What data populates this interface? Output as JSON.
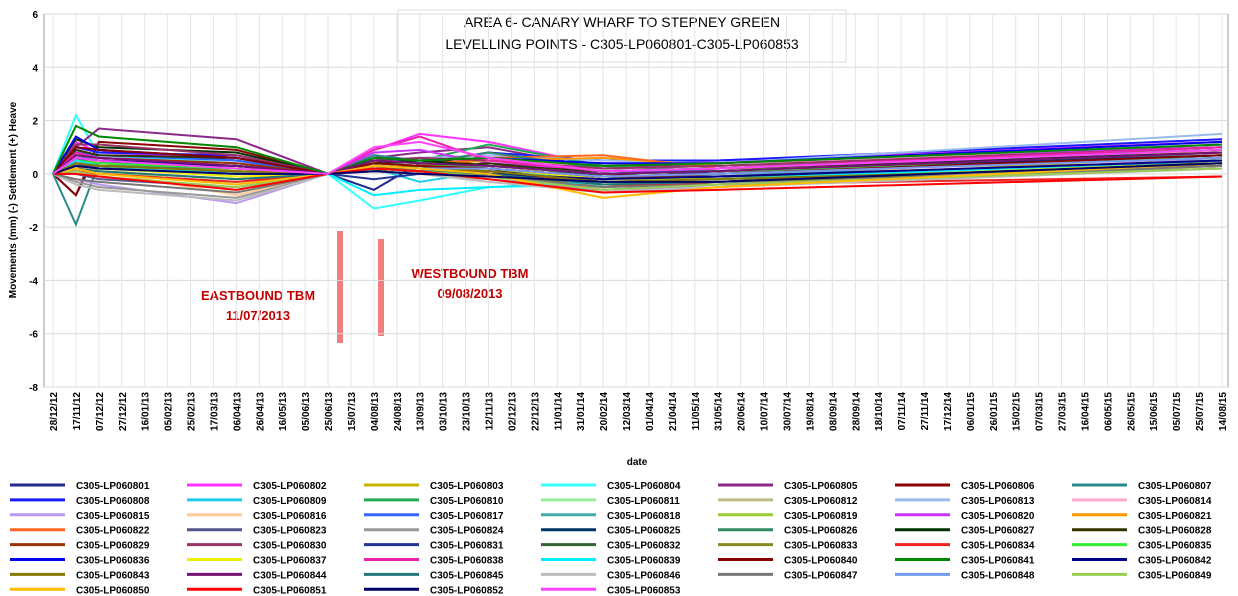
{
  "chart_data": {
    "type": "line",
    "title": "AREA 6- CANARY WHARF TO STEPNEY GREEN",
    "subtitle": "LEVELLING POINTS -  C305-LP060801-C305-LP060853",
    "y_label": "Movements (mm) (-) Settlement (+) Heave",
    "x_label": "date",
    "annotations": [
      "EASTBOUND TBM",
      "11/07/2013",
      "WESTBOUND TBM",
      "09/08/2013"
    ],
    "ylim": [
      -8,
      6
    ],
    "yticks": [
      -8,
      -6,
      -4,
      -2,
      0,
      2,
      4,
      6
    ],
    "xticks": [
      "28/12/12",
      "17/11/12",
      "07/12/12",
      "27/12/12",
      "16/01/13",
      "05/02/13",
      "25/02/13",
      "17/03/13",
      "06/04/13",
      "26/04/13",
      "16/05/13",
      "05/06/13",
      "25/06/13",
      "15/07/13",
      "04/08/13",
      "24/08/13",
      "13/09/13",
      "03/10/13",
      "23/10/13",
      "12/11/13",
      "02/12/13",
      "22/12/13",
      "11/01/14",
      "31/01/14",
      "20/02/14",
      "12/03/14",
      "01/04/14",
      "21/04/14",
      "11/05/14",
      "31/05/14",
      "20/06/14",
      "10/07/14",
      "30/07/14",
      "19/08/14",
      "08/09/14",
      "28/09/14",
      "18/10/14",
      "07/11/14",
      "27/11/14",
      "17/12/14",
      "06/01/15",
      "26/01/15",
      "15/02/15",
      "07/03/15",
      "27/03/15",
      "16/04/15",
      "06/05/15",
      "26/05/15",
      "15/06/15",
      "05/07/15",
      "25/07/15",
      "14/08/15"
    ],
    "x": [
      "28/12/12",
      "17/11/12",
      "07/12/12",
      "06/04/13",
      "25/06/13",
      "04/08/13",
      "13/09/13",
      "12/11/13",
      "20/02/14",
      "31/05/14",
      "14/08/15"
    ],
    "grid": true,
    "series": [
      {
        "name": "C305-LP060801",
        "color": "#1f2a8a",
        "values": [
          0,
          -0.8,
          0.9,
          0.5,
          0,
          -0.6,
          0.4,
          0.2,
          -0.2,
          0.1,
          0.6
        ]
      },
      {
        "name": "C305-LP060802",
        "color": "#ff33ff",
        "values": [
          0,
          1.2,
          0.8,
          0.6,
          0,
          0.9,
          1.5,
          1.2,
          0.3,
          0.5,
          1.2
        ]
      },
      {
        "name": "C305-LP060803",
        "color": "#c8b400",
        "values": [
          0,
          0.5,
          0.3,
          0.2,
          0,
          0.4,
          0.3,
          0.5,
          0.1,
          0.2,
          0.4
        ]
      },
      {
        "name": "C305-LP060804",
        "color": "#33ffff",
        "values": [
          0,
          2.2,
          0.7,
          0.4,
          0,
          -1.3,
          -1.0,
          -0.5,
          -0.4,
          -0.2,
          0.3
        ]
      },
      {
        "name": "C305-LP060805",
        "color": "#8a2a8a",
        "values": [
          0,
          1.0,
          1.7,
          1.3,
          0,
          0.6,
          0.8,
          1.0,
          0.2,
          0.4,
          1.0
        ]
      },
      {
        "name": "C305-LP060806",
        "color": "#8b0000",
        "values": [
          0,
          -0.8,
          1.2,
          0.9,
          0,
          0.5,
          0.6,
          0.3,
          0.0,
          -0.2,
          0.4
        ]
      },
      {
        "name": "C305-LP060807",
        "color": "#2a8a8a",
        "values": [
          0,
          -1.9,
          0.4,
          0.3,
          0,
          0.7,
          0.5,
          0.6,
          -0.1,
          0.0,
          0.7
        ]
      },
      {
        "name": "C305-LP060808",
        "color": "#1a1aff",
        "values": [
          0,
          1.0,
          0.8,
          0.7,
          0,
          0.6,
          0.4,
          0.8,
          0.5,
          0.5,
          1.3
        ]
      },
      {
        "name": "C305-LP060809",
        "color": "#22ccee",
        "values": [
          0,
          0.7,
          0.5,
          0.3,
          0,
          0.2,
          -0.3,
          0.1,
          -0.2,
          0.0,
          0.9
        ]
      },
      {
        "name": "C305-LP060810",
        "color": "#22aa55",
        "values": [
          0,
          0.4,
          0.2,
          0.0,
          0,
          0.3,
          0.5,
          1.1,
          0.3,
          0.1,
          0.8
        ]
      },
      {
        "name": "C305-LP060811",
        "color": "#99ee99",
        "values": [
          0,
          0.2,
          0.1,
          -0.4,
          0,
          0.3,
          0.2,
          0.0,
          -0.5,
          -0.3,
          0.5
        ]
      },
      {
        "name": "C305-LP060812",
        "color": "#bbbb88",
        "values": [
          0,
          0.6,
          0.4,
          0.1,
          0,
          0.4,
          0.2,
          0.1,
          -0.6,
          -0.4,
          0.3
        ]
      },
      {
        "name": "C305-LP060813",
        "color": "#99bbee",
        "values": [
          0,
          0.9,
          0.6,
          0.4,
          0,
          0.5,
          0.6,
          0.7,
          0.5,
          0.4,
          1.5
        ]
      },
      {
        "name": "C305-LP060814",
        "color": "#ffaacc",
        "values": [
          0,
          0.5,
          0.5,
          0.2,
          0,
          0.6,
          0.5,
          0.6,
          0.2,
          0.3,
          1.1
        ]
      },
      {
        "name": "C305-LP060815",
        "color": "#bb99ee",
        "values": [
          0,
          -0.2,
          -0.4,
          -1.1,
          0,
          0.3,
          0.1,
          0.0,
          -0.7,
          -0.4,
          0.6
        ]
      },
      {
        "name": "C305-LP060816",
        "color": "#ffcc99",
        "values": [
          0,
          0.3,
          0.1,
          -0.8,
          0,
          0.4,
          0.2,
          0.4,
          -0.3,
          -0.2,
          0.9
        ]
      },
      {
        "name": "C305-LP060817",
        "color": "#3366ff",
        "values": [
          0,
          0.8,
          0.7,
          0.5,
          0,
          0.5,
          0.4,
          0.3,
          0.0,
          0.2,
          1.0
        ]
      },
      {
        "name": "C305-LP060818",
        "color": "#44aaaa",
        "values": [
          0,
          0.3,
          0.3,
          0.1,
          0,
          0.3,
          0.1,
          0.2,
          -0.2,
          -0.1,
          0.8
        ]
      },
      {
        "name": "C305-LP060819",
        "color": "#99cc33",
        "values": [
          0,
          0.1,
          0.0,
          -0.3,
          0,
          0.2,
          0.3,
          0.1,
          -0.4,
          -0.3,
          0.5
        ]
      },
      {
        "name": "C305-LP060820",
        "color": "#cc33ff",
        "values": [
          0,
          0.6,
          0.5,
          0.3,
          0,
          0.8,
          0.9,
          0.4,
          0.1,
          0.2,
          1.1
        ]
      },
      {
        "name": "C305-LP060821",
        "color": "#ff9900",
        "values": [
          0,
          0.4,
          0.3,
          0.0,
          0,
          0.5,
          0.4,
          0.5,
          0.6,
          0.3,
          0.9
        ]
      },
      {
        "name": "C305-LP060822",
        "color": "#ff6622",
        "values": [
          0,
          0.2,
          0.4,
          0.1,
          0,
          0.4,
          0.3,
          0.6,
          0.7,
          0.2,
          0.8
        ]
      },
      {
        "name": "C305-LP060823",
        "color": "#555588",
        "values": [
          0,
          0.0,
          -0.2,
          -0.5,
          0,
          0.2,
          0.1,
          -0.1,
          -0.3,
          -0.3,
          0.5
        ]
      },
      {
        "name": "C305-LP060824",
        "color": "#999999",
        "values": [
          0,
          -0.3,
          -0.5,
          -0.9,
          0,
          0.1,
          0.0,
          -0.2,
          -0.6,
          -0.4,
          0.4
        ]
      },
      {
        "name": "C305-LP060825",
        "color": "#003366",
        "values": [
          0,
          0.5,
          0.4,
          0.3,
          0,
          0.3,
          0.2,
          0.1,
          0.0,
          0.1,
          0.7
        ]
      },
      {
        "name": "C305-LP060826",
        "color": "#338866",
        "values": [
          0,
          0.6,
          0.3,
          0.2,
          0,
          0.5,
          0.4,
          0.8,
          0.2,
          0.3,
          0.9
        ]
      },
      {
        "name": "C305-LP060827",
        "color": "#003300",
        "values": [
          0,
          1.3,
          1.0,
          0.8,
          0,
          0.4,
          0.5,
          0.3,
          0.1,
          0.2,
          0.8
        ]
      },
      {
        "name": "C305-LP060828",
        "color": "#333300",
        "values": [
          0,
          0.9,
          0.7,
          0.6,
          0,
          0.3,
          0.2,
          0.4,
          0.0,
          0.1,
          0.6
        ]
      },
      {
        "name": "C305-LP060829",
        "color": "#993300",
        "values": [
          0,
          0.7,
          0.6,
          0.4,
          0,
          0.2,
          0.3,
          0.2,
          -0.1,
          -0.1,
          0.5
        ]
      },
      {
        "name": "C305-LP060830",
        "color": "#993366",
        "values": [
          0,
          1.1,
          1.1,
          0.7,
          0,
          0.5,
          0.6,
          0.5,
          0.2,
          0.3,
          1.0
        ]
      },
      {
        "name": "C305-LP060831",
        "color": "#223399",
        "values": [
          0,
          0.4,
          0.2,
          0.0,
          0,
          -0.2,
          0.0,
          0.1,
          -0.3,
          -0.2,
          0.4
        ]
      },
      {
        "name": "C305-LP060832",
        "color": "#336633",
        "values": [
          0,
          0.3,
          0.2,
          0.1,
          0,
          0.1,
          0.3,
          0.2,
          -0.2,
          -0.1,
          0.3
        ]
      },
      {
        "name": "C305-LP060833",
        "color": "#888822",
        "values": [
          0,
          0.2,
          0.1,
          -0.2,
          0,
          0.2,
          0.1,
          0.0,
          -0.5,
          -0.3,
          0.2
        ]
      },
      {
        "name": "C305-LP060834",
        "color": "#ee2222",
        "values": [
          0,
          0.1,
          0.0,
          -0.3,
          0,
          0.3,
          0.2,
          0.1,
          -0.4,
          -0.4,
          -0.1
        ]
      },
      {
        "name": "C305-LP060835",
        "color": "#33ee33",
        "values": [
          0,
          0.5,
          0.4,
          0.2,
          0,
          0.4,
          0.3,
          0.3,
          0.0,
          0.1,
          0.6
        ]
      },
      {
        "name": "C305-LP060836",
        "color": "#0000ee",
        "values": [
          0,
          1.4,
          0.9,
          0.6,
          0,
          0.6,
          0.5,
          0.6,
          0.4,
          0.4,
          1.2
        ]
      },
      {
        "name": "C305-LP060837",
        "color": "#eeee00",
        "values": [
          0,
          0.3,
          0.2,
          -0.1,
          0,
          0.3,
          0.2,
          0.2,
          -0.2,
          -0.2,
          0.4
        ]
      },
      {
        "name": "C305-LP060838",
        "color": "#ee22aa",
        "values": [
          0,
          0.8,
          0.6,
          0.3,
          0,
          0.9,
          1.4,
          0.5,
          0.1,
          0.2,
          1.0
        ]
      },
      {
        "name": "C305-LP060839",
        "color": "#00eeff",
        "values": [
          0,
          0.5,
          0.3,
          0.0,
          0,
          -0.8,
          -0.6,
          -0.5,
          -0.3,
          -0.2,
          0.5
        ]
      },
      {
        "name": "C305-LP060840",
        "color": "#880000",
        "values": [
          0,
          1.0,
          0.9,
          0.6,
          0,
          0.4,
          0.3,
          0.2,
          -0.1,
          0.0,
          0.7
        ]
      },
      {
        "name": "C305-LP060841",
        "color": "#008800",
        "values": [
          0,
          1.8,
          1.4,
          1.0,
          0,
          0.6,
          0.5,
          0.6,
          0.3,
          0.4,
          1.1
        ]
      },
      {
        "name": "C305-LP060842",
        "color": "#000088",
        "values": [
          0,
          0.6,
          0.5,
          0.3,
          0,
          0.2,
          0.1,
          0.0,
          -0.2,
          -0.1,
          0.5
        ]
      },
      {
        "name": "C305-LP060843",
        "color": "#887700",
        "values": [
          0,
          0.4,
          0.3,
          0.1,
          0,
          0.3,
          0.2,
          0.1,
          -0.3,
          -0.2,
          0.3
        ]
      },
      {
        "name": "C305-LP060844",
        "color": "#771177",
        "values": [
          0,
          0.7,
          0.6,
          0.3,
          0,
          0.5,
          0.4,
          0.3,
          0.0,
          0.1,
          0.8
        ]
      },
      {
        "name": "C305-LP060845",
        "color": "#227777",
        "values": [
          0,
          0.2,
          0.1,
          -0.2,
          0,
          0.2,
          0.1,
          0.0,
          -0.4,
          -0.3,
          0.4
        ]
      },
      {
        "name": "C305-LP060846",
        "color": "#bbbbbb",
        "values": [
          0,
          -0.4,
          -0.6,
          -1.0,
          0,
          0.1,
          0.0,
          -0.3,
          -0.7,
          -0.5,
          0.2
        ]
      },
      {
        "name": "C305-LP060847",
        "color": "#777777",
        "values": [
          0,
          -0.2,
          -0.3,
          -0.7,
          0,
          0.2,
          0.1,
          -0.1,
          -0.5,
          -0.4,
          0.3
        ]
      },
      {
        "name": "C305-LP060848",
        "color": "#7799ee",
        "values": [
          0,
          0.3,
          0.2,
          0.0,
          0,
          0.3,
          0.2,
          0.2,
          -0.1,
          0.0,
          0.6
        ]
      },
      {
        "name": "C305-LP060849",
        "color": "#99cc55",
        "values": [
          0,
          0.1,
          -0.1,
          -0.5,
          0,
          0.2,
          0.1,
          -0.1,
          -0.6,
          -0.4,
          0.2
        ]
      },
      {
        "name": "C305-LP060850",
        "color": "#ffbb00",
        "values": [
          0,
          0.2,
          0.0,
          -0.4,
          0,
          0.3,
          0.2,
          0.0,
          -0.9,
          -0.5,
          0.4
        ]
      },
      {
        "name": "C305-LP060851",
        "color": "#ff0000",
        "values": [
          0,
          0.0,
          -0.1,
          -0.6,
          0,
          0.2,
          0.1,
          -0.2,
          -0.7,
          -0.6,
          -0.1
        ]
      },
      {
        "name": "C305-LP060852",
        "color": "#000066",
        "values": [
          0,
          0.3,
          0.2,
          0.0,
          0,
          0.1,
          0.0,
          -0.1,
          -0.3,
          -0.3,
          0.4
        ]
      },
      {
        "name": "C305-LP060853",
        "color": "#ff44ff",
        "values": [
          0,
          0.6,
          0.5,
          0.2,
          0,
          1.0,
          1.2,
          0.6,
          0.1,
          0.2,
          0.9
        ]
      }
    ]
  }
}
